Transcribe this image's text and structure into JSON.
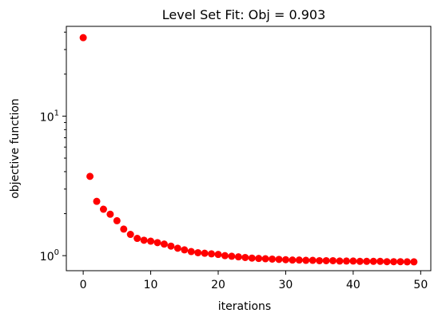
{
  "chart_data": {
    "type": "scatter",
    "title": "Level Set Fit: Obj = 0.903",
    "xlabel": "iterations",
    "ylabel": "objective function",
    "xlim": [
      -2.5,
      51.5
    ],
    "ylim": [
      0.78,
      44
    ],
    "yscale": "log",
    "grid": false,
    "marker_color": "#ff0000",
    "x_ticks": [
      0,
      10,
      20,
      30,
      40,
      50
    ],
    "y_major_ticks": [
      {
        "value": 1,
        "base": "10",
        "exp": "0"
      },
      {
        "value": 10,
        "base": "10",
        "exp": "1"
      }
    ],
    "y_minor_ticks": [
      2,
      3,
      4,
      5,
      6,
      7,
      8,
      9,
      20,
      30,
      40
    ],
    "x": [
      0,
      1,
      2,
      3,
      4,
      5,
      6,
      7,
      8,
      9,
      10,
      11,
      12,
      13,
      14,
      15,
      16,
      17,
      18,
      19,
      20,
      21,
      22,
      23,
      24,
      25,
      26,
      27,
      28,
      29,
      30,
      31,
      32,
      33,
      34,
      35,
      36,
      37,
      38,
      39,
      40,
      41,
      42,
      43,
      44,
      45,
      46,
      47,
      48,
      49
    ],
    "y": [
      36.5,
      3.7,
      2.45,
      2.15,
      1.98,
      1.78,
      1.55,
      1.42,
      1.33,
      1.29,
      1.27,
      1.24,
      1.21,
      1.17,
      1.13,
      1.1,
      1.07,
      1.05,
      1.04,
      1.03,
      1.02,
      1.0,
      0.99,
      0.98,
      0.97,
      0.96,
      0.955,
      0.95,
      0.945,
      0.94,
      0.935,
      0.93,
      0.93,
      0.925,
      0.925,
      0.92,
      0.92,
      0.92,
      0.915,
      0.915,
      0.915,
      0.91,
      0.91,
      0.91,
      0.91,
      0.905,
      0.905,
      0.905,
      0.903,
      0.903
    ]
  }
}
